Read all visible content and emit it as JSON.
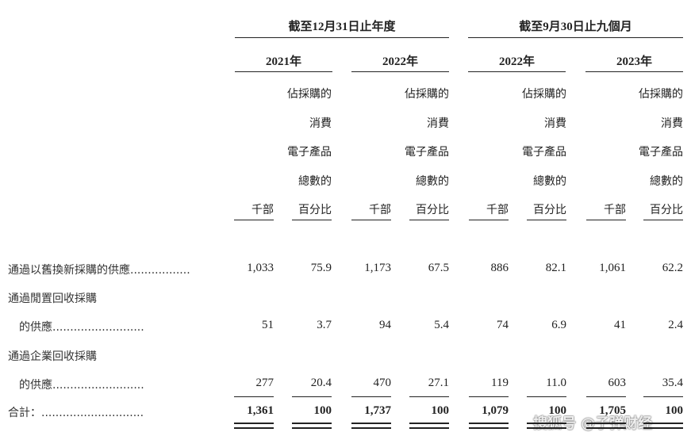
{
  "groups": [
    {
      "title": "截至12月31日止年度"
    },
    {
      "title": "截至9月30日止九個月"
    }
  ],
  "years": [
    "2021年",
    "2022年",
    "2022年",
    "2023年"
  ],
  "unit_header": "千部",
  "percent_header_lines": [
    "佔採購的",
    "消費",
    "電子產品",
    "總數的",
    "百分比"
  ],
  "rows": [
    {
      "label": "通過以舊換新採購的供應.................",
      "values": [
        "1,033",
        "75.9",
        "1,173",
        "67.5",
        "886",
        "82.1",
        "1,061",
        "62.2"
      ]
    },
    {
      "label_line1": "通過閒置回收採購",
      "label": "的供應..........................",
      "values": [
        "51",
        "3.7",
        "94",
        "5.4",
        "74",
        "6.9",
        "41",
        "2.4"
      ]
    },
    {
      "label_line1": "通過企業回收採購",
      "label": "的供應..........................",
      "values": [
        "277",
        "20.4",
        "470",
        "27.1",
        "119",
        "11.0",
        "603",
        "35.4"
      ]
    },
    {
      "label": "合計：.............................",
      "values": [
        "1,361",
        "100",
        "1,737",
        "100",
        "1,079",
        "100",
        "1,705",
        "100"
      ],
      "total": true
    }
  ],
  "watermark": "搜狐号 @子弹财经"
}
